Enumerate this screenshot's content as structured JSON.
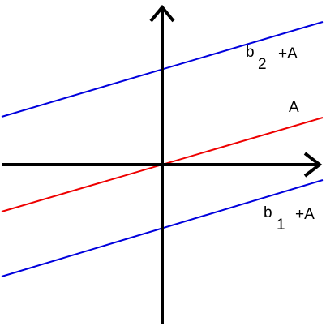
{
  "labels": {
    "upper": {
      "base": "b",
      "subscript": "2",
      "suffix": "+A"
    },
    "middle": "A",
    "lower": {
      "base": "b",
      "subscript": "1",
      "suffix": "+A"
    }
  }
}
